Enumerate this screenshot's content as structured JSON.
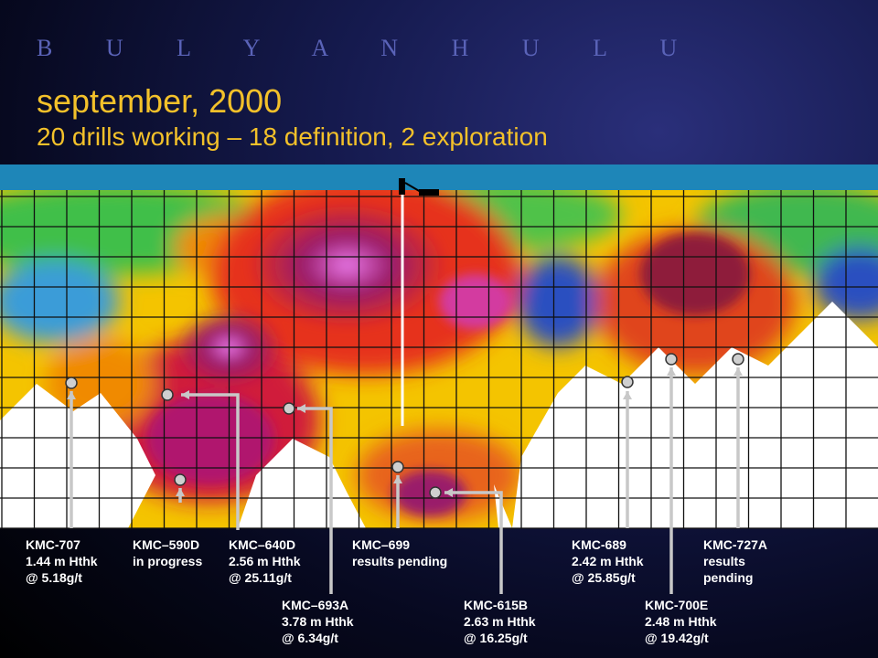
{
  "header": {
    "brand": "B U L Y A N H U L U",
    "title": "september, 2000",
    "subtitle": "20 drills working – 18 definition, 2 exploration"
  },
  "colors": {
    "title": "#f3c12a",
    "brand": "#5a63b8",
    "band": "#1e86b8",
    "pointer": "#c8c8c8"
  },
  "drillholes": [
    {
      "id": "KMC-707",
      "lines": [
        "KMC-707",
        "1.44 m Hthk",
        "@ 5.18g/t"
      ]
    },
    {
      "id": "KMC–590D",
      "lines": [
        "KMC–590D",
        "in progress"
      ]
    },
    {
      "id": "KMC–640D",
      "lines": [
        "KMC–640D",
        "2.56 m Hthk",
        "@ 25.11g/t"
      ]
    },
    {
      "id": "KMC–693A",
      "lines": [
        "KMC–693A",
        "3.78 m Hthk",
        "@ 6.34g/t"
      ]
    },
    {
      "id": "KMC–699",
      "lines": [
        "KMC–699",
        "results pending"
      ]
    },
    {
      "id": "KMC-615B",
      "lines": [
        "KMC-615B",
        "2.63 m Hthk",
        "@ 16.25g/t"
      ]
    },
    {
      "id": "KMC-689",
      "lines": [
        "KMC-689",
        "2.42 m Hthk",
        "@ 25.85g/t"
      ]
    },
    {
      "id": "KMC-700E",
      "lines": [
        "KMC-700E",
        "2.48 m Hthk",
        "@ 19.42g/t"
      ]
    },
    {
      "id": "KMC-727A",
      "lines": [
        "KMC-727A",
        "results",
        "pending"
      ]
    }
  ]
}
